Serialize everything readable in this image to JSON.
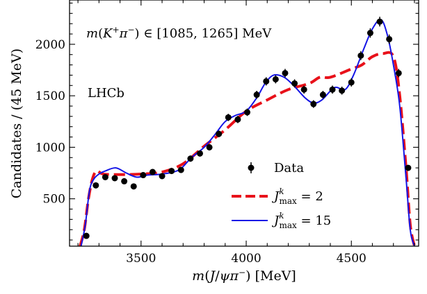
{
  "chart_data": {
    "type": "line",
    "xlabel_parts": {
      "m": "m",
      "open": "(",
      "j": "J",
      "slash": "/",
      "psi": "ψ",
      "pi": "π",
      "sup": "−",
      "close": ")",
      "unit": " [MeV]"
    },
    "ylabel": "Candidates / (45 MeV)",
    "annotations": {
      "selection": {
        "m": "m",
        "open": "(",
        "k": "K",
        "ksup": "+",
        "pi": "π",
        "pisup": "−",
        "rest": ") ∈ [1085, 1265] MeV"
      },
      "experiment": "LHCb"
    },
    "xlim": [
      3160,
      4820
    ],
    "ylim": [
      40,
      2430
    ],
    "x_ticks": [
      3500,
      4000,
      4500
    ],
    "x_tick_labels": [
      "3500",
      "4000",
      "4500"
    ],
    "y_ticks": [
      500,
      1000,
      1500,
      2000
    ],
    "y_tick_labels": [
      "500",
      "1000",
      "1500",
      "2000"
    ],
    "legend": {
      "placement": "lower-right",
      "data_label": "Data",
      "model_a": {
        "j": "J",
        "sup": "k",
        "sub": "max",
        "eq": " = 2"
      },
      "model_b": {
        "j": "J",
        "sup": "k",
        "sub": "max",
        "eq": " = 15"
      }
    },
    "series": [
      {
        "name": "Data",
        "kind": "points",
        "color": "#000000",
        "x": [
          3240,
          3285,
          3330,
          3375,
          3420,
          3465,
          3510,
          3555,
          3600,
          3645,
          3690,
          3735,
          3780,
          3825,
          3870,
          3915,
          3960,
          4005,
          4050,
          4095,
          4140,
          4185,
          4230,
          4275,
          4320,
          4365,
          4410,
          4455,
          4500,
          4545,
          4590,
          4635,
          4680,
          4725,
          4770
        ],
        "y": [
          140,
          630,
          710,
          700,
          670,
          620,
          730,
          760,
          720,
          770,
          780,
          890,
          940,
          1000,
          1130,
          1290,
          1270,
          1340,
          1510,
          1640,
          1660,
          1720,
          1620,
          1560,
          1420,
          1510,
          1560,
          1550,
          1630,
          1890,
          2110,
          2220,
          2050,
          1720,
          800
        ],
        "yerr": [
          15,
          25,
          26,
          26,
          25,
          25,
          27,
          27,
          27,
          27,
          28,
          30,
          30,
          31,
          33,
          35,
          35,
          36,
          38,
          40,
          40,
          41,
          40,
          39,
          37,
          38,
          39,
          39,
          40,
          43,
          46,
          47,
          45,
          41,
          28
        ]
      },
      {
        "name": "J^k_max = 2",
        "kind": "dashed",
        "color": "#e8111a",
        "x": [
          3210,
          3230,
          3250,
          3270,
          3290,
          3320,
          3400,
          3500,
          3600,
          3700,
          3800,
          3900,
          4000,
          4100,
          4200,
          4300,
          4350,
          4400,
          4500,
          4550,
          4600,
          4650,
          4700,
          4730,
          4760,
          4780,
          4800
        ],
        "y": [
          40,
          200,
          500,
          700,
          770,
          740,
          735,
          740,
          760,
          840,
          1010,
          1170,
          1350,
          1460,
          1560,
          1620,
          1680,
          1680,
          1760,
          1800,
          1880,
          1910,
          1880,
          1500,
          800,
          250,
          40
        ]
      },
      {
        "name": "J^k_max = 15",
        "kind": "solid",
        "color": "#1414e6",
        "x": [
          3215,
          3235,
          3255,
          3275,
          3300,
          3330,
          3380,
          3430,
          3480,
          3530,
          3600,
          3680,
          3740,
          3800,
          3850,
          3900,
          3950,
          4000,
          4050,
          4090,
          4130,
          4180,
          4230,
          4280,
          4320,
          4360,
          4420,
          4470,
          4510,
          4560,
          4600,
          4640,
          4670,
          4700,
          4730,
          4760,
          4780,
          4800
        ],
        "y": [
          40,
          250,
          580,
          690,
          740,
          770,
          800,
          750,
          710,
          730,
          740,
          780,
          900,
          1000,
          1120,
          1250,
          1310,
          1350,
          1480,
          1620,
          1700,
          1680,
          1590,
          1480,
          1430,
          1460,
          1580,
          1560,
          1700,
          1960,
          2150,
          2240,
          2100,
          1800,
          1400,
          700,
          200,
          40
        ]
      }
    ]
  }
}
